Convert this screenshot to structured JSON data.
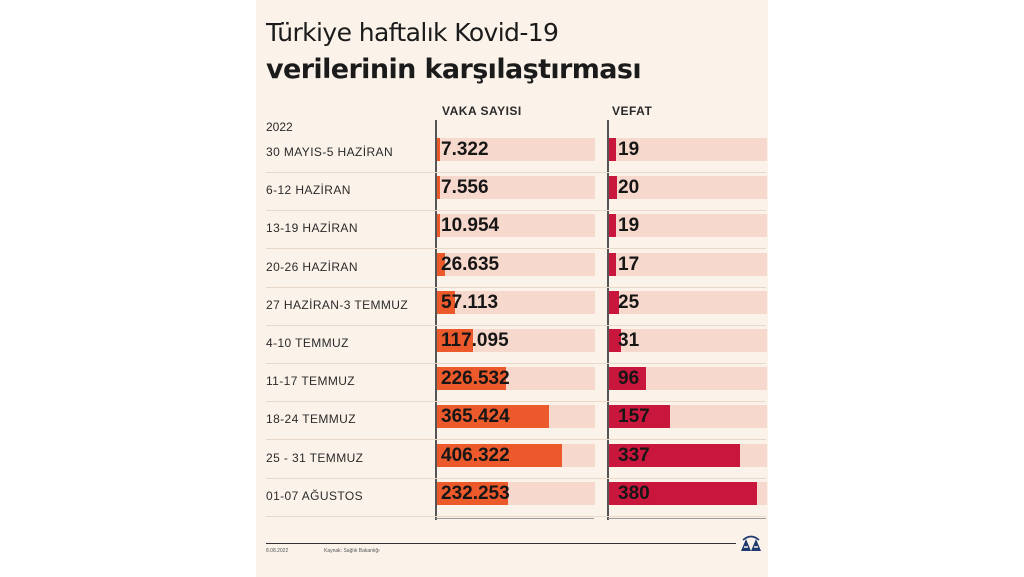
{
  "header": {
    "title_line1": "Türkiye haftalık Kovid-19",
    "title_line2": "verilerinin karşılaştırması"
  },
  "year_label": "2022",
  "columns": {
    "cases": "VAKA SAYISI",
    "deaths": "VEFAT"
  },
  "footer": {
    "date": "8.08.2022",
    "source": "Kaynak: Sağlık Bakanlığı"
  },
  "colors": {
    "cases_bar": "#ec5a2c",
    "deaths_bar": "#c9163c",
    "track": "#f7d8cc",
    "background": "#fbf3ea"
  },
  "logo_icon": "aa-logo-icon",
  "chart_data": {
    "type": "bar",
    "orientation": "horizontal",
    "title": "Türkiye haftalık Kovid-19 verilerinin karşılaştırması",
    "categories": [
      "30 MAYIS-5 HAZİRAN",
      "6-12 HAZİRAN",
      "13-19 HAZİRAN",
      "20-26 HAZİRAN",
      "27 HAZİRAN-3 TEMMUZ",
      "4-10 TEMMUZ",
      "11-17 TEMMUZ",
      "18-24 TEMMUZ",
      "25 - 31 TEMMUZ",
      "01-07 AĞUSTOS"
    ],
    "series": [
      {
        "name": "VAKA SAYISI",
        "values": [
          7322,
          7556,
          10954,
          26635,
          57113,
          117095,
          226532,
          365424,
          406322,
          232253
        ],
        "labels": [
          "7.322",
          "7.556",
          "10.954",
          "26.635",
          "57.113",
          "117.095",
          "226.532",
          "365.424",
          "406.322",
          "232.253"
        ],
        "max": 515000
      },
      {
        "name": "VEFAT",
        "values": [
          19,
          20,
          19,
          17,
          25,
          31,
          96,
          157,
          337,
          380
        ],
        "labels": [
          "19",
          "20",
          "19",
          "17",
          "25",
          "31",
          "96",
          "157",
          "337",
          "380"
        ],
        "max": 405
      }
    ],
    "grid": false
  }
}
